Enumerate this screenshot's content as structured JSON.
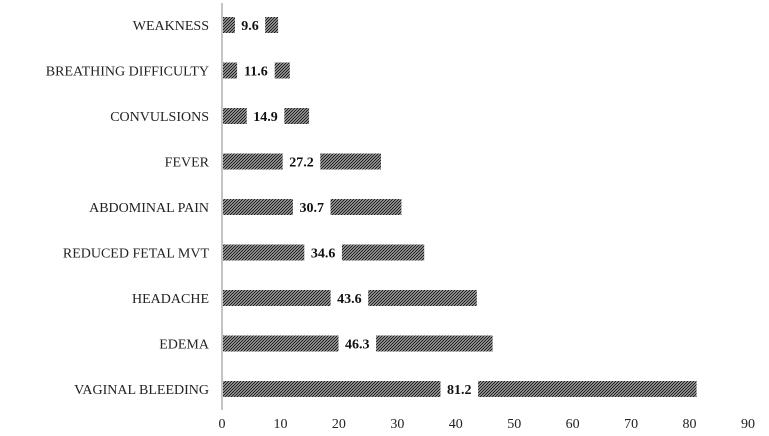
{
  "chart_data": {
    "type": "bar",
    "orientation": "horizontal",
    "categories": [
      "WEAKNESS",
      "BREATHING DIFFICULTY",
      "CONVULSIONS",
      "FEVER",
      "ABDOMINAL PAIN",
      "REDUCED FETAL MVT",
      "HEADACHE",
      "EDEMA",
      "VAGINAL BLEEDING"
    ],
    "values": [
      9.6,
      11.6,
      14.9,
      27.2,
      30.7,
      34.6,
      43.6,
      46.3,
      81.2
    ],
    "data_labels": [
      "9.6",
      "11.6",
      "14.9",
      "27.2",
      "30.7",
      "34.6",
      "43.6",
      "46.3",
      "81.2"
    ],
    "x_ticks": [
      "0",
      "10",
      "20",
      "30",
      "40",
      "50",
      "60",
      "70",
      "80",
      "90"
    ],
    "xlim": [
      0,
      90
    ],
    "title": "",
    "xlabel": "",
    "ylabel": "",
    "grid": false,
    "legend": "none",
    "bar_pattern": "crosshatch",
    "bar_color": "#444444"
  }
}
